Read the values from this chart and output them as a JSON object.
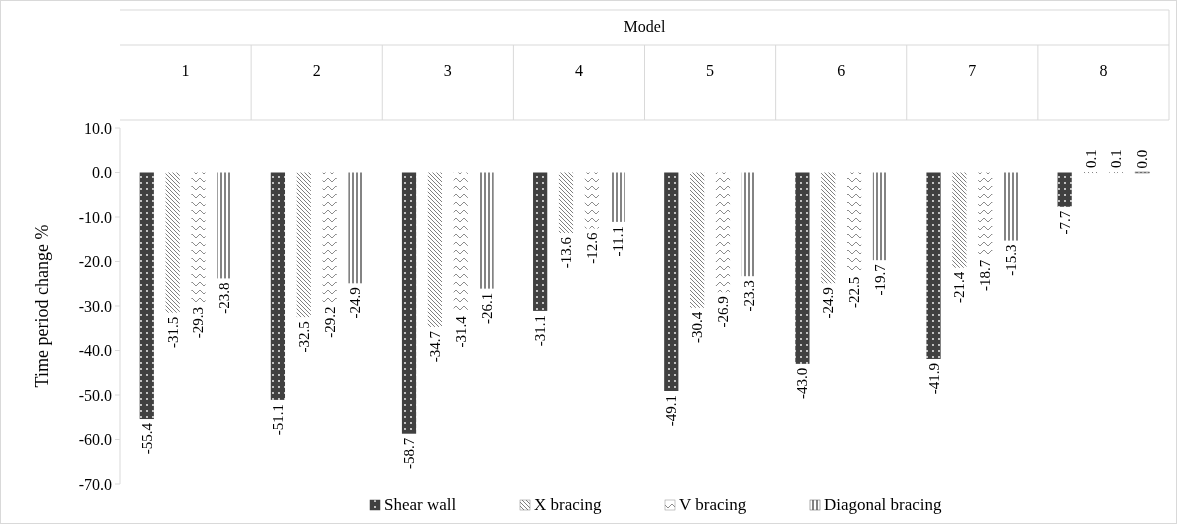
{
  "chart_data": {
    "type": "bar",
    "xlabel": "Model",
    "ylabel": "Time period change %",
    "categories": [
      "1",
      "2",
      "3",
      "4",
      "5",
      "6",
      "7",
      "8"
    ],
    "series": [
      {
        "name": "Shear wall",
        "color": "#404040",
        "values": [
          -55.4,
          -51.1,
          -58.7,
          -31.1,
          -49.1,
          -43.0,
          -41.9,
          -7.7
        ],
        "value_labels": [
          "-55.4",
          "-51.1",
          "-58.7",
          "-31.1",
          "-49.1",
          "-43.0",
          "-41.9",
          "-7.7"
        ]
      },
      {
        "name": "X bracing",
        "color": "#7f7f7f",
        "values": [
          -31.5,
          -32.5,
          -34.7,
          -13.6,
          -30.4,
          -24.9,
          -21.4,
          0.1
        ],
        "value_labels": [
          "-31.5",
          "-32.5",
          "-34.7",
          "-13.6",
          "-30.4",
          "-24.9",
          "-21.4",
          "0.1"
        ]
      },
      {
        "name": "V bracing",
        "color": "#8c8c8c",
        "values": [
          -29.3,
          -29.2,
          -31.4,
          -12.6,
          -26.9,
          -22.5,
          -18.7,
          0.1
        ],
        "value_labels": [
          "-29.3",
          "-29.2",
          "-31.4",
          "-12.6",
          "-26.9",
          "-22.5",
          "-18.7",
          "0.1"
        ]
      },
      {
        "name": "Diagonal bracing",
        "color": "#595959",
        "values": [
          -23.8,
          -24.9,
          -26.1,
          -11.1,
          -23.3,
          -19.7,
          -15.3,
          0.0
        ],
        "value_labels": [
          "-23.8",
          "-24.9",
          "-26.1",
          "-11.1",
          "-23.3",
          "-19.7",
          "-15.3",
          "0.0"
        ]
      }
    ],
    "ylim": [
      -70,
      10
    ],
    "yticks": [
      {
        "value": 10,
        "label": "10.0"
      },
      {
        "value": 0,
        "label": "0.0"
      },
      {
        "value": -10,
        "label": "-10.0"
      },
      {
        "value": -20,
        "label": "-20.0"
      },
      {
        "value": -30,
        "label": "-30.0"
      },
      {
        "value": -40,
        "label": "-40.0"
      },
      {
        "value": -50,
        "label": "-50.0"
      },
      {
        "value": -60,
        "label": "-60.0"
      },
      {
        "value": -70,
        "label": "-70.0"
      }
    ],
    "legend": "bottom"
  }
}
